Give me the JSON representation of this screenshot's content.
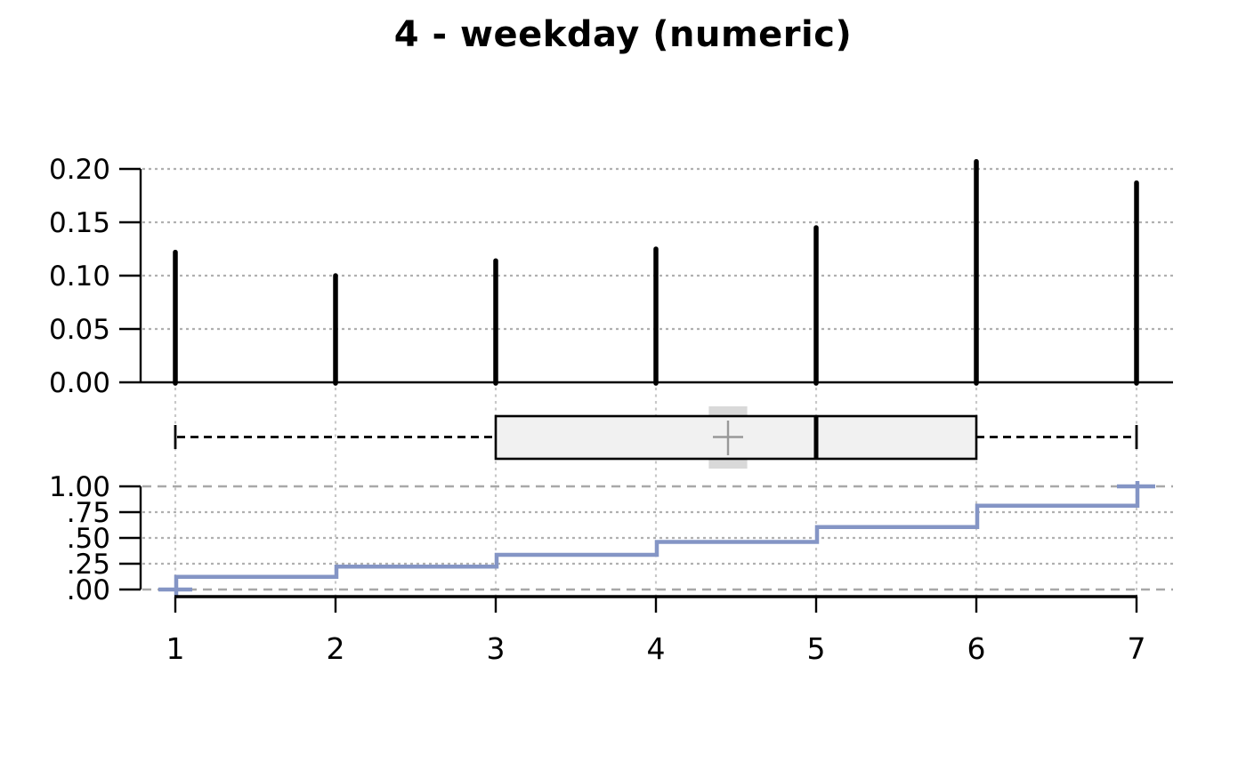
{
  "title": "4 - weekday (numeric)",
  "colors": {
    "spike": "#000000",
    "axis": "#000000",
    "grid_dotted": "#b0b0b0",
    "grid_dashed": "#a8a8a8",
    "grid_vertical": "#c8c8c8",
    "box_fill": "#f1f1f1",
    "box_border": "#000000",
    "median": "#000000",
    "ci_band": "#d9d9d9",
    "mean_cross": "#999999",
    "ecdf_line": "#8495c5",
    "background": "#ffffff"
  },
  "chart_data": [
    {
      "type": "bar",
      "subtype": "spike-proportions",
      "categories": [
        1,
        2,
        3,
        4,
        5,
        6,
        7
      ],
      "values": [
        0.122,
        0.1,
        0.114,
        0.125,
        0.145,
        0.207,
        0.187
      ],
      "title": "4 - weekday (numeric)",
      "xlabel": "",
      "ylabel": "",
      "ylim": [
        0,
        0.2
      ],
      "ytick_values": [
        0.0,
        0.05,
        0.1,
        0.15,
        0.2
      ],
      "ytick_labels": [
        "0.00",
        "0.05",
        "0.10",
        "0.15",
        "0.20"
      ],
      "grid": "horizontal dotted",
      "legend": "none"
    },
    {
      "type": "boxplot",
      "orientation": "horizontal",
      "whisker_low": 1,
      "q1": 3,
      "median": 5,
      "q3": 6,
      "whisker_high": 7,
      "mean": 4.45,
      "mean_ci": [
        4.33,
        4.57
      ],
      "grid": "vertical dashed at integers 1-7",
      "legend": "none"
    },
    {
      "type": "line",
      "subtype": "ecdf-step",
      "x": [
        1,
        2,
        3,
        4,
        5,
        6,
        7
      ],
      "cumulative": [
        0.122,
        0.222,
        0.336,
        0.461,
        0.606,
        0.813,
        1.0
      ],
      "ylim": [
        0,
        1
      ],
      "ytick_values": [
        1.0,
        0.75,
        0.5,
        0.25,
        0.0
      ],
      "ytick_labels": [
        "1.00",
        ".75",
        ".50",
        ".25",
        ".00"
      ],
      "xtick_values": [
        1,
        2,
        3,
        4,
        5,
        6,
        7
      ],
      "xtick_labels": [
        "1",
        "2",
        "3",
        "4",
        "5",
        "6",
        "7"
      ],
      "grid": "dashed at 0 and 1, dotted at .25 .50 .75, vertical dashed at integers",
      "legend": "none"
    }
  ]
}
